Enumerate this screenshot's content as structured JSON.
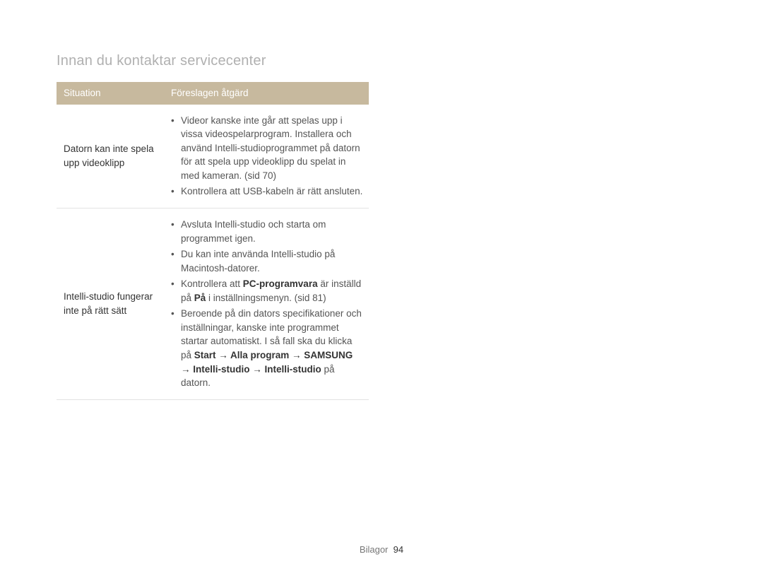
{
  "title": "Innan du kontaktar servicecenter",
  "table": {
    "headers": {
      "situation": "Situation",
      "action": "Föreslagen åtgärd"
    },
    "rows": [
      {
        "situation": "Datorn kan inte spela upp videoklipp",
        "bullets": [
          {
            "text": "Videor kanske inte går att spelas upp i vissa videospelarprogram. Installera och använd Intelli-studioprogrammet på datorn för att spela upp videoklipp du spelat in med kameran. (sid 70)"
          },
          {
            "text": "Kontrollera att USB-kabeln är rätt ansluten."
          }
        ]
      },
      {
        "situation": "Intelli-studio fungerar inte på rätt sätt",
        "bullets": [
          {
            "text": "Avsluta Intelli-studio och starta om programmet igen."
          },
          {
            "text": "Du kan inte använda Intelli-studio på Macintosh-datorer."
          },
          {
            "html": "Kontrollera att <span class=\"bold\">PC-programvara</span> är inställd på <span class=\"bold\">På</span> i inställningsmenyn. (sid 81)"
          },
          {
            "html": "Beroende på din dators specifikationer och inställningar, kanske inte programmet startar automatiskt. I så fall ska du klicka på <span class=\"bold\">Start &rarr; Alla program &rarr; SAMSUNG &rarr; Intelli-studio &rarr; Intelli-studio</span> på datorn."
          }
        ]
      }
    ]
  },
  "footer": {
    "label": "Bilagor",
    "page": "94"
  }
}
